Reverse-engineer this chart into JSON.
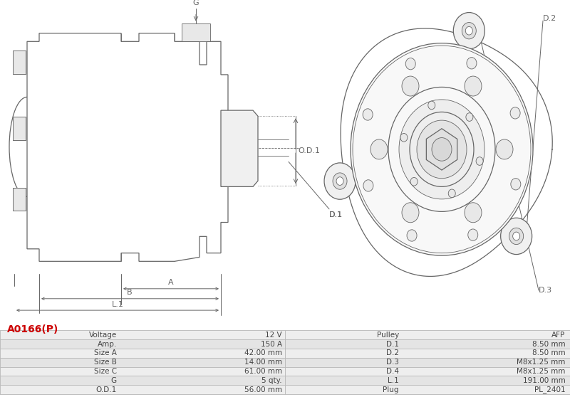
{
  "title": "A0166(P)",
  "title_color": "#cc0000",
  "bg_color": "#ffffff",
  "line_color": "#666666",
  "table_data": [
    [
      "Voltage",
      "12 V",
      "Pulley",
      "AFP"
    ],
    [
      "Amp.",
      "150 A",
      "D.1",
      "8.50 mm"
    ],
    [
      "Size A",
      "42.00 mm",
      "D.2",
      "8.50 mm"
    ],
    [
      "Size B",
      "14.00 mm",
      "D.3",
      "M8x1.25 mm"
    ],
    [
      "Size C",
      "61.00 mm",
      "D.4",
      "M8x1.25 mm"
    ],
    [
      "G",
      "5 qty.",
      "L.1",
      "191.00 mm"
    ],
    [
      "O.D.1",
      "56.00 mm",
      "Plug",
      "PL_2401"
    ]
  ],
  "table_row_bg1": "#eeeeee",
  "table_row_bg2": "#e4e4e4",
  "table_border": "#bbbbbb"
}
